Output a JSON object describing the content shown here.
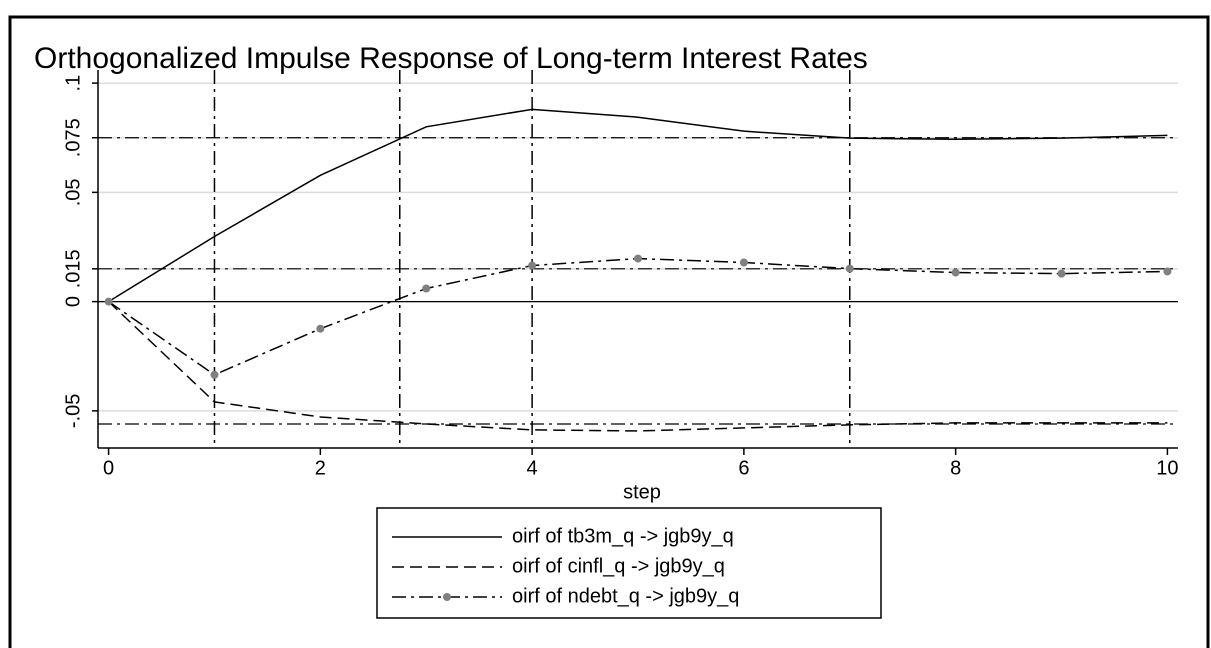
{
  "chart_data": {
    "type": "line",
    "title": "Orthogonalized Impulse Response of Long-term Interest Rates",
    "x_label": "step",
    "x": [
      0,
      1,
      2,
      3,
      4,
      5,
      6,
      7,
      8,
      9,
      10
    ],
    "xlim": [
      -0.1,
      10.1
    ],
    "xticks": [
      0,
      2,
      4,
      6,
      8,
      10
    ],
    "ylim": [
      -0.067,
      0.106
    ],
    "yticks": [
      {
        "value": -0.05,
        "label": "-.05"
      },
      0,
      {
        "value": 0.015,
        "label": ".015"
      },
      {
        "value": 0.05,
        "label": ".05"
      },
      {
        "value": 0.075,
        "label": ".075"
      },
      {
        "value": 0.1,
        "label": ".1"
      }
    ],
    "grid": true,
    "hlines": [
      0.075,
      0.015,
      -0.056
    ],
    "vlines": [
      1,
      2.75,
      4,
      7
    ],
    "series": [
      {
        "name": "oirf of tb3m_q -> jgb9y_q",
        "color": "#000000",
        "dash": "solid",
        "marker": false,
        "values": [
          0,
          0.0298,
          0.0578,
          0.08,
          0.088,
          0.0844,
          0.078,
          0.0748,
          0.0743,
          0.0748,
          0.0761
        ]
      },
      {
        "name": "oirf of cinfl_q -> jgb9y_q",
        "color": "#000000",
        "dash": "dashed",
        "marker": false,
        "values": [
          0,
          -0.0459,
          -0.0528,
          -0.056,
          -0.0587,
          -0.0592,
          -0.0578,
          -0.0564,
          -0.0555,
          -0.0555,
          -0.0555
        ]
      },
      {
        "name": "oirf of ndebt_q -> jgb9y_q",
        "color": "#000000",
        "dash": "dashdot",
        "marker": true,
        "marker_color": "#808080",
        "values": [
          0,
          -0.0335,
          -0.0124,
          0.006,
          0.0165,
          0.0197,
          0.0179,
          0.0151,
          0.0133,
          0.0128,
          0.0138
        ]
      }
    ]
  }
}
